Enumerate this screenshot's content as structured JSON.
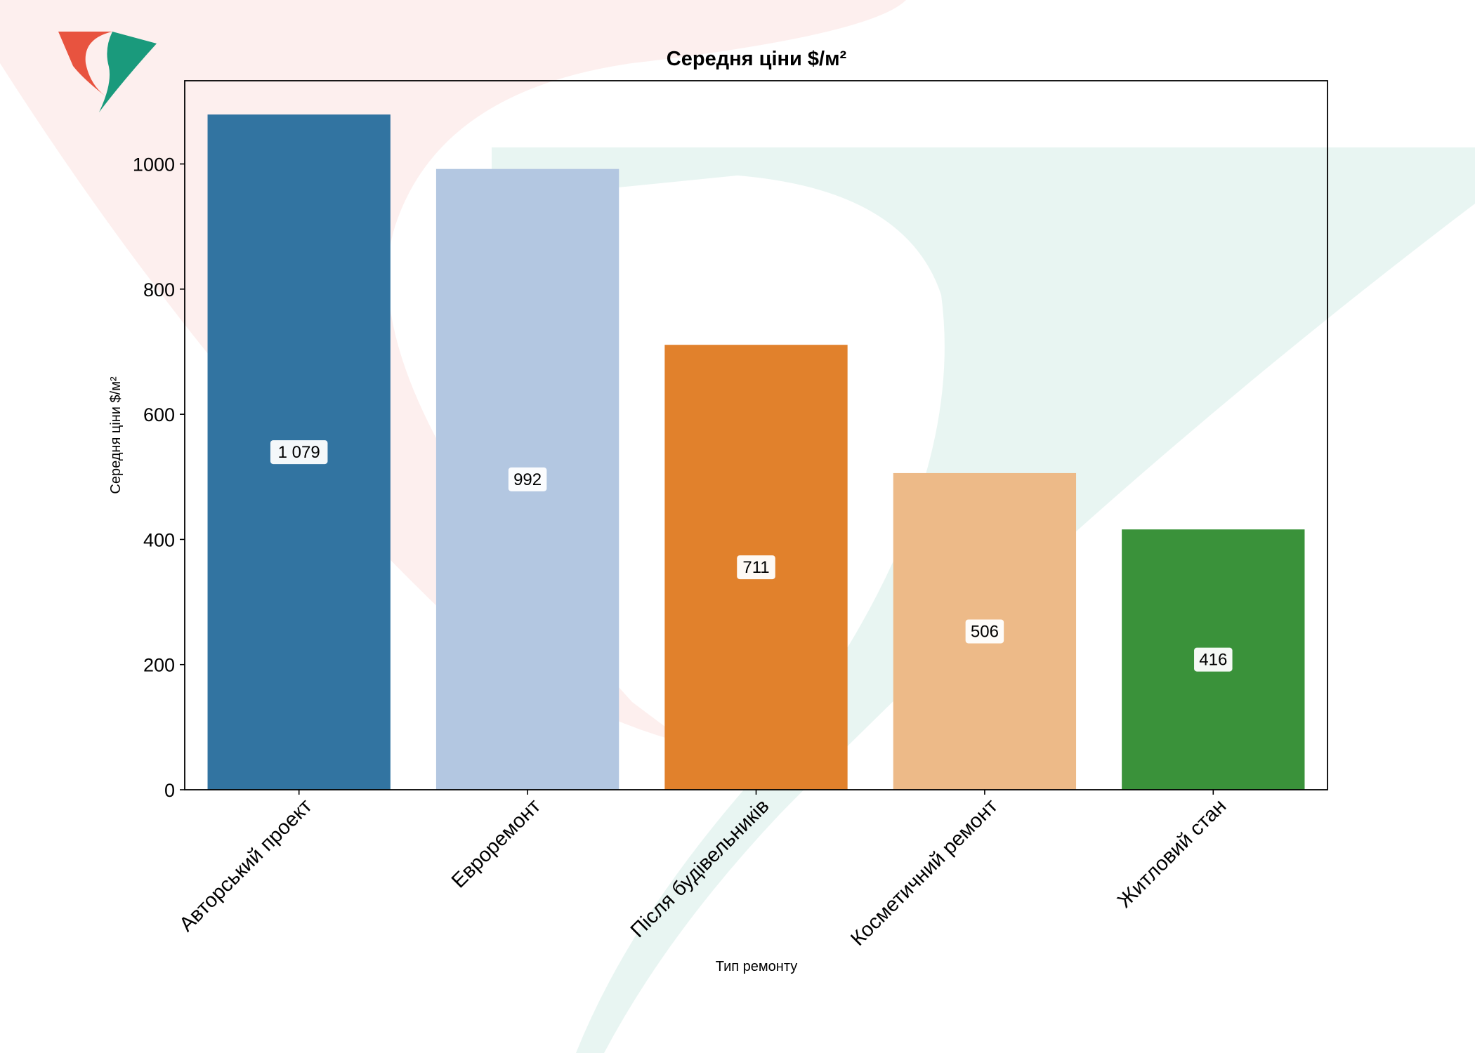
{
  "chart_data": {
    "type": "bar",
    "title": "Середня ціни $/м²",
    "xlabel": "Тип ремонту",
    "ylabel": "Середня ціни $/м²",
    "categories": [
      "Авторський проект",
      "Евроремонт",
      "Після будівельників",
      "Косметичний ремонт",
      "Житловий стан"
    ],
    "values": [
      1079,
      992,
      711,
      506,
      416
    ],
    "value_labels": [
      "1 079",
      "992",
      "711",
      "506",
      "416"
    ],
    "colors": [
      "#3274a1",
      "#b3c7e1",
      "#e1812c",
      "#edba88",
      "#3a923a"
    ],
    "yticks": [
      0,
      200,
      400,
      600,
      800,
      1000
    ],
    "ylim": [
      0,
      1133
    ],
    "grid": false,
    "legend": "none"
  },
  "watermark": {
    "colors": {
      "red": "#e8533f",
      "green": "#1a9a7c"
    },
    "icon": "logo-icon"
  }
}
